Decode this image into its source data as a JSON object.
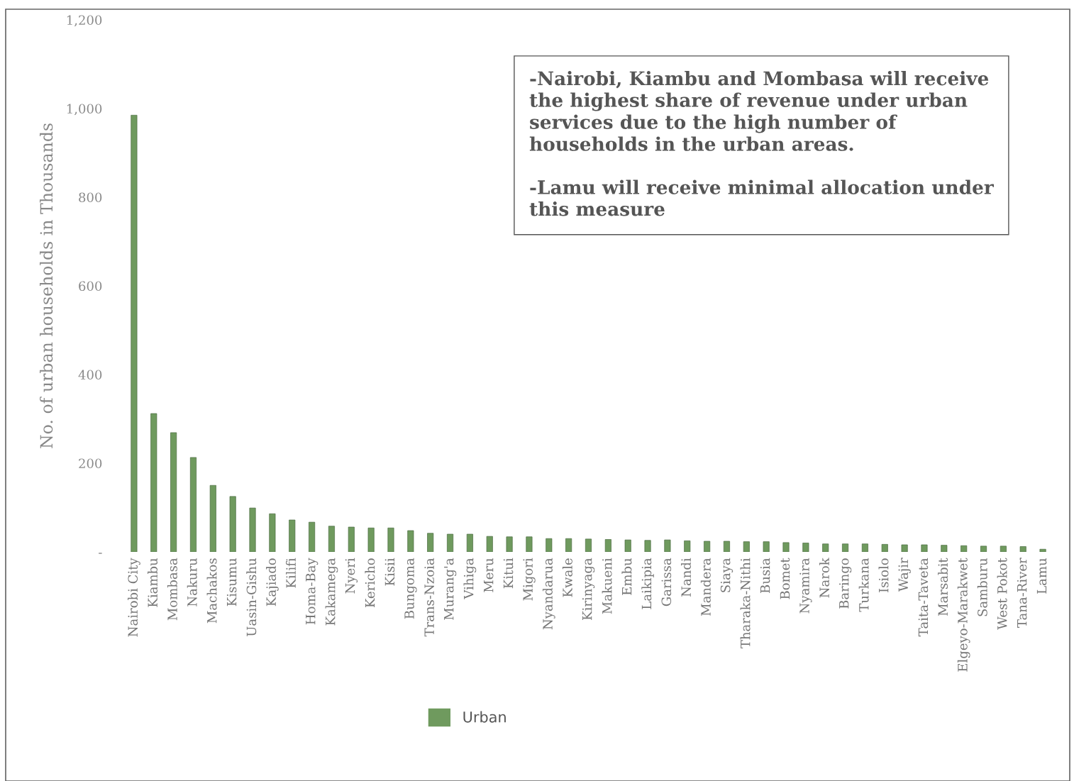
{
  "chart_data": {
    "type": "bar",
    "ylabel": "No. of urban households in Thousands",
    "categories": [
      "Nairobi City",
      "Kiambu",
      "Mombasa",
      "Nakuru",
      "Machakos",
      "Kisumu",
      "Uasin-Gishu",
      "Kajiado",
      "Kilifi",
      "Homa-Bay",
      "Kakamega",
      "Nyeri",
      "Kericho",
      "Kisii",
      "Bungoma",
      "Trans-Nzoia",
      "Murang'a",
      "Vihiga",
      "Meru",
      "Kitui",
      "Migori",
      "Nyandarua",
      "Kwale",
      "Kirinyaga",
      "Makueni",
      "Embu",
      "Laikipia",
      "Garissa",
      "Nandi",
      "Mandera",
      "Siaya",
      "Tharaka-Nithi",
      "Busia",
      "Bomet",
      "Nyamira",
      "Narok",
      "Baringo",
      "Turkana",
      "Isiolo",
      "Wajir",
      "Taita-Taveta",
      "Marsabit",
      "Elgeyo-Marakwet",
      "Samburu",
      "West Pokot",
      "Tana-River",
      "Lamu"
    ],
    "series": [
      {
        "name": "Urban",
        "color": "#6f9a5e",
        "values": [
          985,
          312,
          269,
          213,
          150,
          125,
          99,
          86,
          72,
          67,
          58,
          56,
          54,
          54,
          48,
          42,
          40,
          40,
          35,
          34,
          34,
          30,
          30,
          29,
          28,
          27,
          26,
          27,
          25,
          24,
          24,
          23,
          23,
          21,
          20,
          18,
          18,
          18,
          17,
          16,
          16,
          15,
          14,
          13,
          13,
          12,
          6
        ]
      }
    ],
    "ylim": [
      0,
      1200
    ],
    "yticks": [
      {
        "value": 0,
        "label": "-"
      },
      {
        "value": 200,
        "label": "200"
      },
      {
        "value": 400,
        "label": "400"
      },
      {
        "value": 600,
        "label": "600"
      },
      {
        "value": 800,
        "label": "800"
      },
      {
        "value": 1000,
        "label": "1,000"
      },
      {
        "value": 1200,
        "label": "1,200"
      }
    ],
    "grid": false,
    "legend": "bottom left",
    "annotations": [
      "-Nairobi, Kiambu and Mombasa will receive\nthe highest share of revenue under urban\nservices due to the high number of\nhouseholds in the urban areas.",
      "-Lamu will receive minimal allocation under\nthis measure"
    ]
  }
}
